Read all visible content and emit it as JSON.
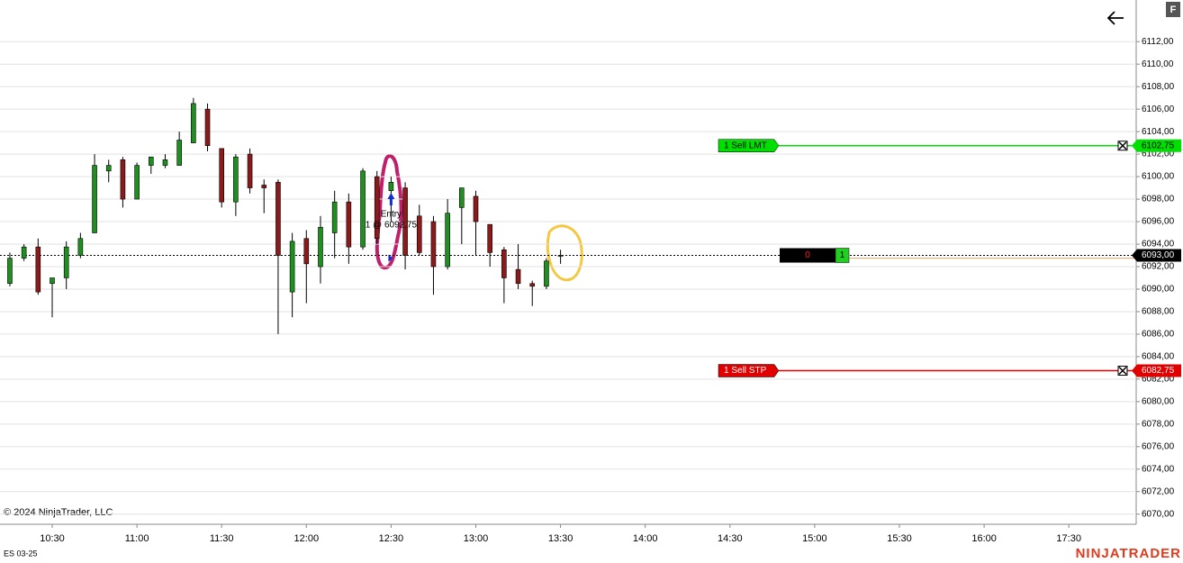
{
  "brand": "NINJATRADER",
  "button": "F",
  "chart_data": {
    "type": "candlestick",
    "instrument": "ES 03-25",
    "copyright": "© 2024 NinjaTrader, LLC",
    "x": [
      "10:15",
      "10:20",
      "10:25",
      "10:30",
      "10:35",
      "10:40",
      "10:45",
      "10:50",
      "10:55",
      "11:00",
      "11:05",
      "11:10",
      "11:15",
      "11:20",
      "11:25",
      "11:30",
      "11:35",
      "11:40",
      "11:45",
      "11:50",
      "11:55",
      "12:00",
      "12:05",
      "12:10",
      "12:15",
      "12:20",
      "12:25",
      "12:30",
      "12:35",
      "12:40",
      "12:45",
      "12:50",
      "12:55",
      "13:00",
      "13:05",
      "13:10",
      "13:15",
      "13:20",
      "13:25",
      "13:30"
    ],
    "open": [
      6090.5,
      6092.75,
      6093.75,
      6090.5,
      6091,
      6093,
      6095,
      6100.5,
      6101.5,
      6098,
      6101,
      6101,
      6101,
      6103,
      6106,
      6102.5,
      6097.75,
      6102,
      6099.25,
      6099.5,
      6089.75,
      6094.5,
      6092,
      6095,
      6097.75,
      6093.75,
      6100,
      6098.75,
      6099,
      6096.5,
      6096,
      6092,
      6097.25,
      6098.25,
      6095.75,
      6093.5,
      6091.75,
      6090.5,
      6090.25,
      6093
    ],
    "high": [
      6093.25,
      6094,
      6094.5,
      6091,
      6094.25,
      6095,
      6102,
      6101.5,
      6101.75,
      6101.25,
      6101.75,
      6102,
      6104,
      6107,
      6106.5,
      6102.5,
      6102,
      6102.5,
      6099.75,
      6099.75,
      6095,
      6095.25,
      6096.5,
      6098.75,
      6098.5,
      6100.75,
      6100.5,
      6100,
      6099.5,
      6097.5,
      6096.5,
      6098,
      6099,
      6098.75,
      6095.75,
      6093.75,
      6094,
      6090.75,
      6092.75,
      6093.5
    ],
    "low": [
      6090.25,
      6092.5,
      6089.5,
      6087.5,
      6090,
      6092.75,
      6095,
      6099.5,
      6097.25,
      6098,
      6100.25,
      6100.75,
      6101,
      6103,
      6102.25,
      6097.25,
      6096.5,
      6098.5,
      6096.75,
      6086,
      6087.5,
      6088.75,
      6090.5,
      6092.75,
      6092.25,
      6093.5,
      6094,
      6096,
      6091.75,
      6093,
      6089.5,
      6091.75,
      6094,
      6093,
      6092,
      6088.75,
      6090,
      6088.5,
      6090,
      6092.25
    ],
    "close": [
      6092.75,
      6093.75,
      6089.75,
      6091,
      6093.75,
      6094.5,
      6101,
      6101,
      6098,
      6101,
      6101.75,
      6101.5,
      6103.25,
      6106.5,
      6102.75,
      6097.75,
      6101.75,
      6099,
      6099,
      6093,
      6094.25,
      6092.25,
      6095.5,
      6097.75,
      6093.75,
      6100.5,
      6094.5,
      6099.5,
      6093,
      6093.25,
      6092,
      6096.75,
      6099,
      6096,
      6093.25,
      6091,
      6090.5,
      6090.25,
      6092.5,
      6093
    ],
    "up_color": "#1f8f1f",
    "down_color": "#8b1a1a",
    "ylim": [
      6069.1,
      6115.7
    ],
    "yticks": [
      {
        "value": 6070,
        "label": "6070,00"
      },
      {
        "value": 6072,
        "label": "6072,00"
      },
      {
        "value": 6074,
        "label": "6074,00"
      },
      {
        "value": 6076,
        "label": "6076,00"
      },
      {
        "value": 6078,
        "label": "6078,00"
      },
      {
        "value": 6080,
        "label": "6080,00"
      },
      {
        "value": 6082,
        "label": "6082,00"
      },
      {
        "value": 6084,
        "label": "6084,00"
      },
      {
        "value": 6086,
        "label": "6086,00"
      },
      {
        "value": 6088,
        "label": "6088,00"
      },
      {
        "value": 6090,
        "label": "6090,00"
      },
      {
        "value": 6092,
        "label": "6092,00"
      },
      {
        "value": 6094,
        "label": "6094,00"
      },
      {
        "value": 6096,
        "label": "6096,00"
      },
      {
        "value": 6098,
        "label": "6098,00"
      },
      {
        "value": 6100,
        "label": "6100,00"
      },
      {
        "value": 6102,
        "label": "6102,00"
      },
      {
        "value": 6104,
        "label": "6104,00"
      },
      {
        "value": 6106,
        "label": "6106,00"
      },
      {
        "value": 6108,
        "label": "6108,00"
      },
      {
        "value": 6110,
        "label": "6110,00"
      },
      {
        "value": 6112,
        "label": "6112,00"
      }
    ],
    "xticks": [
      "10:30",
      "11:00",
      "11:30",
      "12:00",
      "12:30",
      "13:00",
      "13:30",
      "14:00",
      "14:30",
      "15:00",
      "15:30",
      "16:00",
      "17:30"
    ],
    "grid": true,
    "last_price": {
      "value": 6093,
      "label": "6093,00"
    },
    "orders": [
      {
        "name": "1 Sell LMT",
        "price": {
          "value": 6102.75,
          "label": "6102,75"
        },
        "color": "#00e000"
      },
      {
        "name": "1 Sell STP",
        "price": {
          "value": 6082.75,
          "label": "6082,75"
        },
        "color": "#e00000"
      }
    ],
    "entry": {
      "label": "Entry",
      "text": "1 @ 6092,75",
      "x": "12:30",
      "price": 6092.75
    },
    "position": {
      "pnl": "0",
      "quantity": "1"
    }
  }
}
